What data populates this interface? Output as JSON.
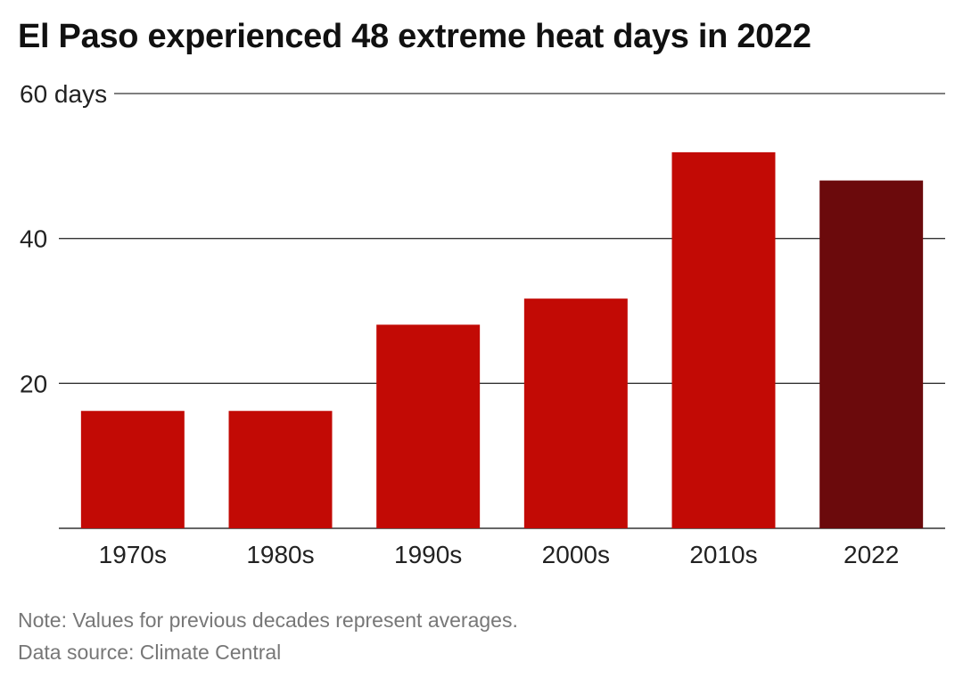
{
  "title": "El Paso experienced 48 extreme heat days in 2022",
  "chart_data": {
    "type": "bar",
    "title": "El Paso experienced 48 extreme heat days in 2022",
    "xlabel": "",
    "ylabel": "",
    "categories": [
      "1970s",
      "1980s",
      "1990s",
      "2000s",
      "2010s",
      "2022"
    ],
    "values": [
      16.2,
      16.2,
      28.1,
      31.7,
      51.9,
      48
    ],
    "ylim": [
      0,
      60
    ],
    "yticks": [
      20,
      40,
      60
    ],
    "ytick_labels": [
      "20",
      "40",
      "60 days"
    ],
    "grid": "horizontal",
    "colors": {
      "decade": "#c20a05",
      "highlight": "#6b0a0c",
      "gridline": "#333333"
    },
    "highlight_category": "2022"
  },
  "notes": {
    "note": "Note: Values for previous decades represent averages.",
    "source": "Data source: Climate Central"
  }
}
